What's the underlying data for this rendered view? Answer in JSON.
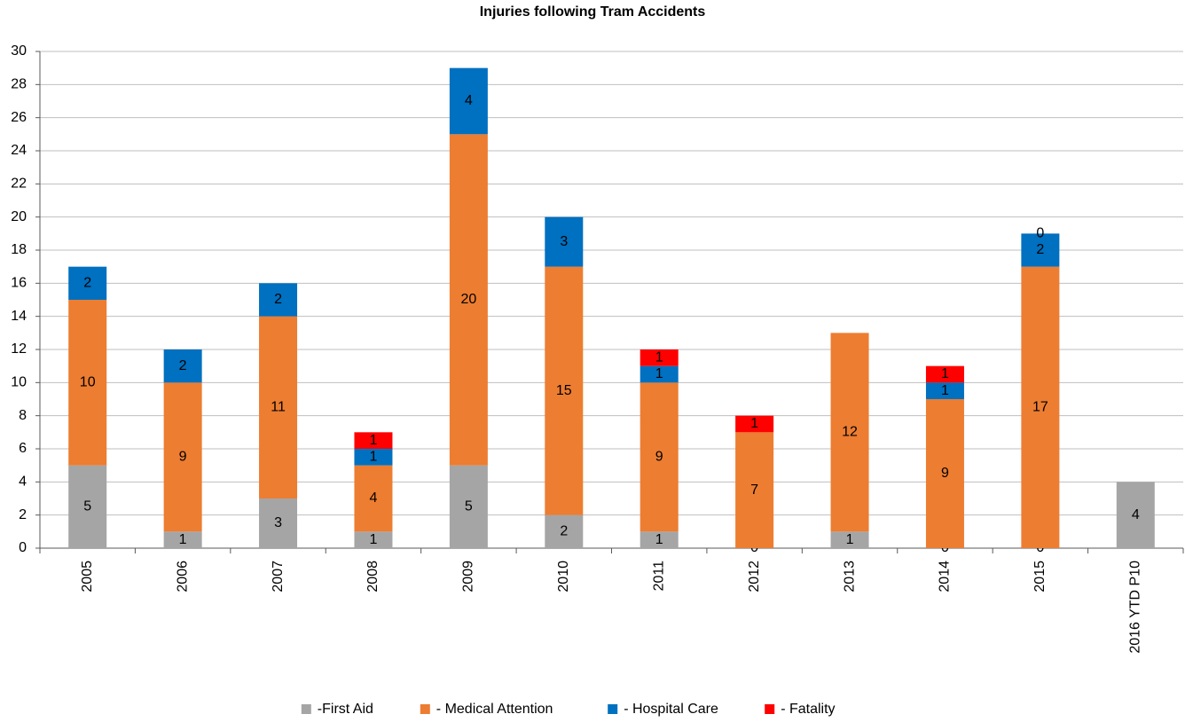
{
  "chart_data": {
    "type": "stacked_bar",
    "title": "Injuries following Tram Accidents",
    "categories": [
      "2005",
      "2006",
      "2007",
      "2008",
      "2009",
      "2010",
      "2011",
      "2012",
      "2013",
      "2014",
      "2015",
      "2016 YTD P10"
    ],
    "series": [
      {
        "name": "-First Aid",
        "color": "#a5a5a5",
        "values": [
          5,
          1,
          3,
          1,
          5,
          2,
          1,
          0,
          1,
          0,
          0,
          4
        ]
      },
      {
        "name": "- Medical Attention",
        "color": "#ed7d31",
        "values": [
          10,
          9,
          11,
          4,
          20,
          15,
          9,
          7,
          12,
          9,
          17,
          null
        ]
      },
      {
        "name": "- Hospital Care",
        "color": "#0070c0",
        "values": [
          2,
          2,
          2,
          1,
          4,
          3,
          1,
          null,
          null,
          1,
          2,
          null
        ]
      },
      {
        "name": "- Fatality",
        "color": "#ff0000",
        "values": [
          null,
          null,
          null,
          1,
          null,
          null,
          1,
          1,
          null,
          1,
          0,
          null
        ]
      }
    ],
    "ylim": [
      0,
      30
    ],
    "yticks": [
      0,
      2,
      4,
      6,
      8,
      10,
      12,
      14,
      16,
      18,
      20,
      22,
      24,
      26,
      28,
      30
    ],
    "grid": true,
    "legend": "bottom"
  }
}
